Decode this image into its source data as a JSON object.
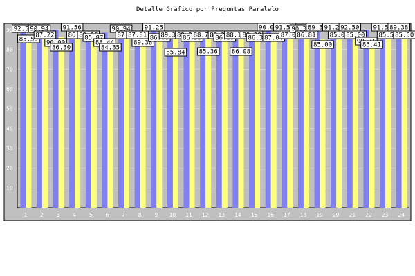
{
  "chart_data": {
    "type": "bar",
    "title": "Detalle Gráfico por Preguntas Paralelo",
    "categories": [
      "1",
      "2",
      "3",
      "4",
      "5",
      "6",
      "7",
      "8",
      "9",
      "10",
      "11",
      "12",
      "13",
      "14",
      "15",
      "16",
      "17",
      "18",
      "19",
      "20",
      "21",
      "22",
      "23",
      "24"
    ],
    "series": [
      {
        "values": [
          92.5,
          90.94,
          90.0,
          91.56,
          89.06,
          88.44,
          90.94,
          87.81,
          91.25,
          89.38,
          89.38,
          88.75,
          89.38,
          88.13,
          89.38,
          90.0,
          91.56,
          90.31,
          89.38,
          91.25,
          92.5,
          90.31,
          91.56,
          89.38
        ],
        "color": "#8080f0"
      },
      {
        "values": [
          85.55,
          87.22,
          86.3,
          86.63,
          85.87,
          84.85,
          87.67,
          89.38,
          86.06,
          85.84,
          86.55,
          85.36,
          86.39,
          86.08,
          86.3,
          87.0,
          87.0,
          86.81,
          85.0,
          85.0,
          85.0,
          85.41,
          85.5,
          85.5
        ],
        "color": "#ffff80"
      }
    ],
    "ylim": [
      0,
      90
    ],
    "yticks": [
      "10",
      "20",
      "30",
      "40",
      "50",
      "60",
      "70",
      "80",
      "90"
    ],
    "grid": true,
    "colors": {
      "plot_bg": "#c0c0c0",
      "grid": "#d4d4d4"
    }
  }
}
